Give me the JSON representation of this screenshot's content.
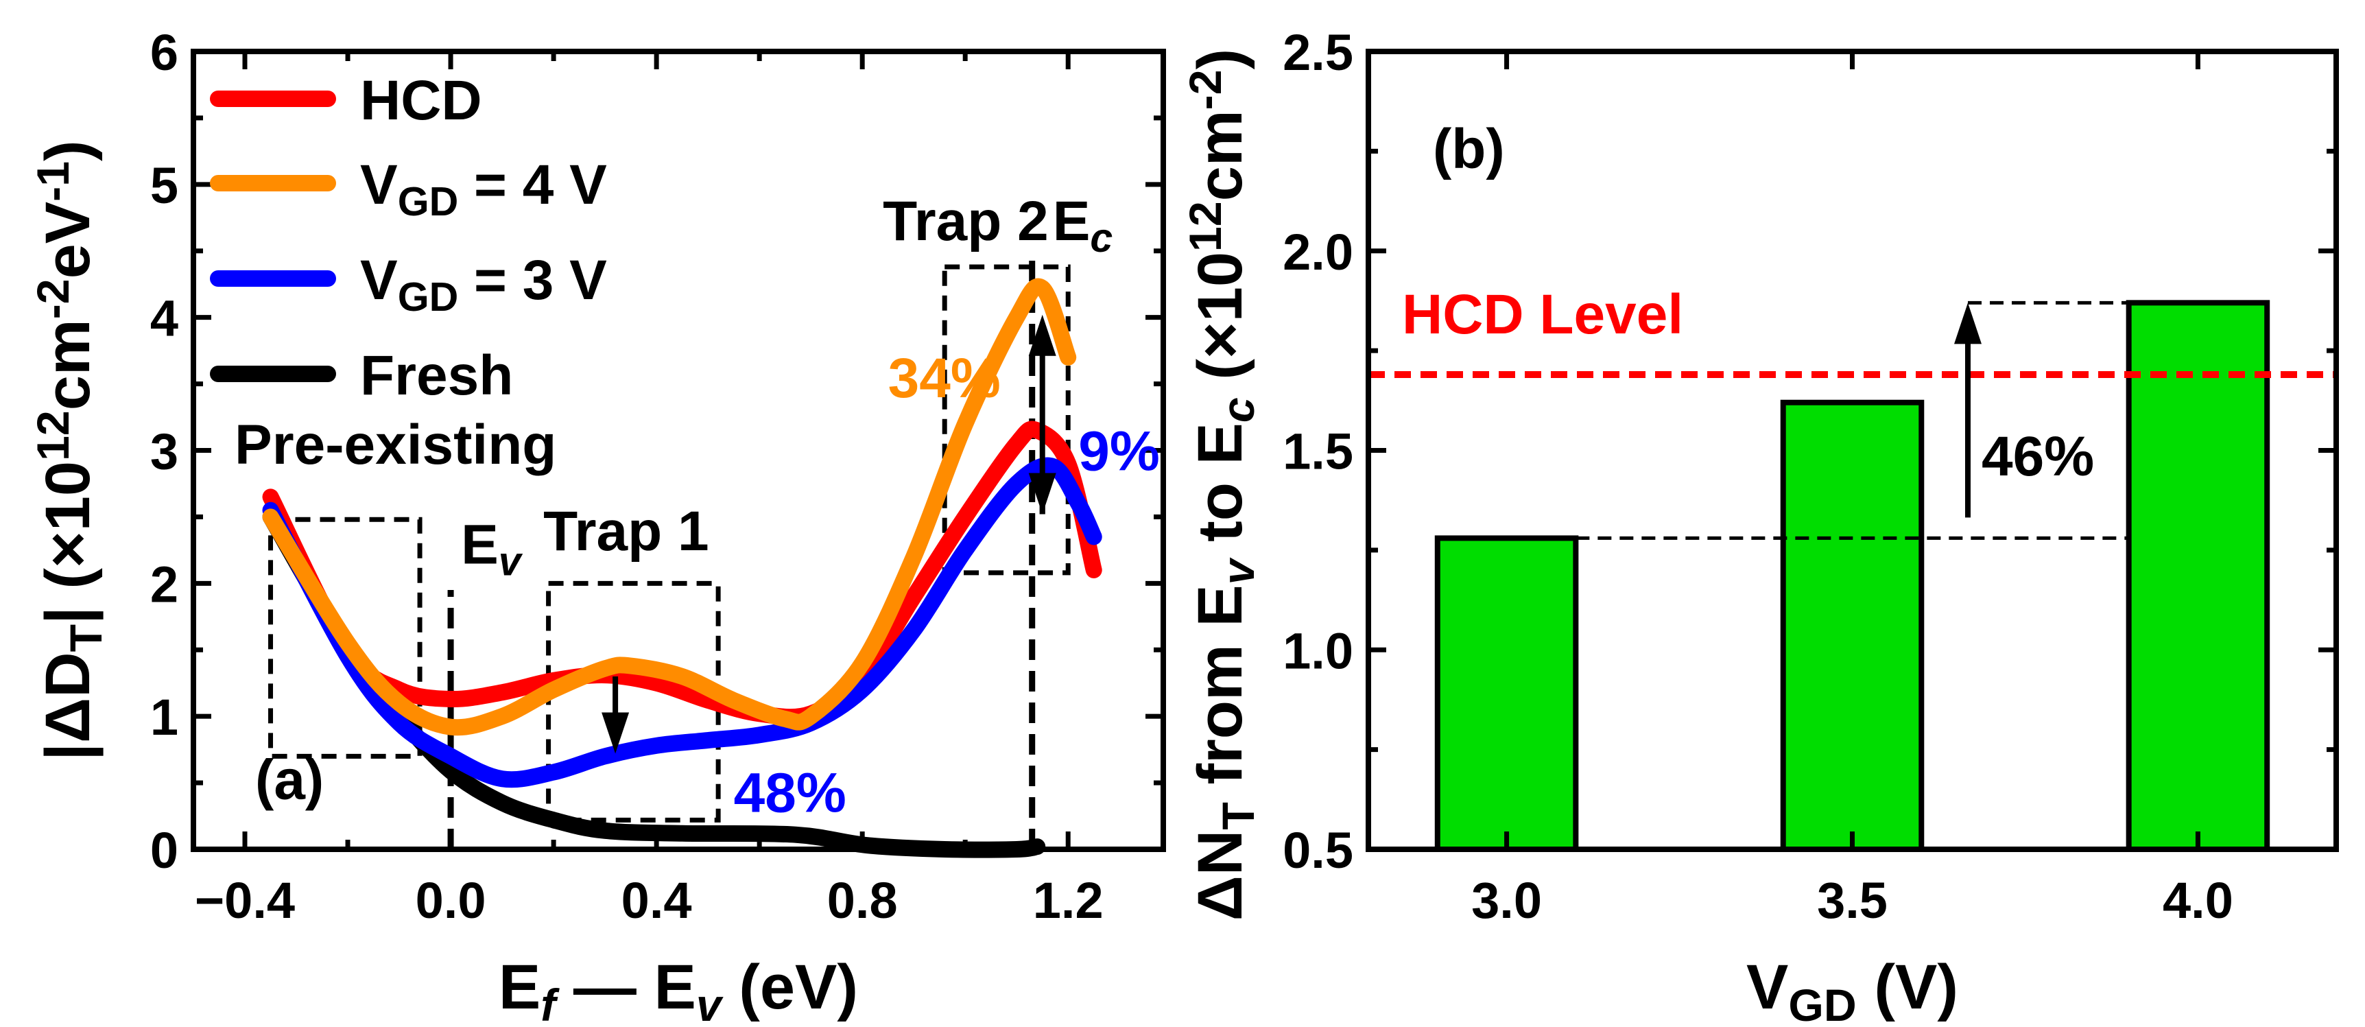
{
  "chart_data": [
    {
      "type": "line",
      "panel_label": "(a)",
      "xlabel_parts": [
        {
          "t": "E"
        },
        {
          "t": "f",
          "sub": true,
          "italic": true
        },
        {
          "t": " — E"
        },
        {
          "t": "v",
          "sub": true,
          "italic": true
        },
        {
          "t": " (eV)"
        }
      ],
      "ylabel_parts": [
        {
          "t": "|ΔD"
        },
        {
          "t": "T",
          "sub": true
        },
        {
          "t": "| (×10"
        },
        {
          "t": "12",
          "sup": true
        },
        {
          "t": "cm"
        },
        {
          "t": "-2",
          "sup": true
        },
        {
          "t": "eV"
        },
        {
          "t": "-1",
          "sup": true
        },
        {
          "t": ")"
        }
      ],
      "xlim": [
        -0.5,
        1.385
      ],
      "ylim": [
        0,
        6
      ],
      "xticks": [
        -0.4,
        0.0,
        0.4,
        0.8,
        1.2
      ],
      "xtick_labels": [
        "−0.4",
        "0.0",
        "0.4",
        "0.8",
        "1.2"
      ],
      "yticks": [
        0,
        1,
        2,
        3,
        4,
        5,
        6
      ],
      "ytick_labels": [
        "0",
        "1",
        "2",
        "3",
        "4",
        "5",
        "6"
      ],
      "legend_position": "top-left",
      "series": [
        {
          "name": "HCD",
          "name_parts": [
            {
              "t": "HCD"
            }
          ],
          "color": "#ff0000",
          "x": [
            -0.35,
            -0.2,
            -0.1,
            0.0,
            0.1,
            0.2,
            0.3,
            0.4,
            0.5,
            0.6,
            0.7,
            0.8,
            0.9,
            1.0,
            1.1,
            1.14,
            1.2,
            1.25
          ],
          "y": [
            2.65,
            1.5,
            1.2,
            1.13,
            1.18,
            1.27,
            1.31,
            1.25,
            1.12,
            1.02,
            1.02,
            1.3,
            1.9,
            2.5,
            3.05,
            3.15,
            2.9,
            2.1
          ]
        },
        {
          "name": "VGD = 4 V",
          "name_parts": [
            {
              "t": "V"
            },
            {
              "t": "GD",
              "sub": true
            },
            {
              "t": " = 4 V"
            }
          ],
          "color": "#ff8c00",
          "x": [
            -0.35,
            -0.2,
            -0.1,
            0.0,
            0.1,
            0.2,
            0.3,
            0.35,
            0.45,
            0.55,
            0.65,
            0.7,
            0.8,
            0.9,
            1.0,
            1.1,
            1.15,
            1.2
          ],
          "y": [
            2.5,
            1.55,
            1.1,
            0.92,
            1.0,
            1.2,
            1.36,
            1.38,
            1.3,
            1.12,
            0.98,
            1.0,
            1.4,
            2.2,
            3.2,
            4.0,
            4.22,
            3.7
          ]
        },
        {
          "name": "VGD = 3 V",
          "name_parts": [
            {
              "t": "V"
            },
            {
              "t": "GD",
              "sub": true
            },
            {
              "t": " = 3 V"
            }
          ],
          "color": "#0000ff",
          "x": [
            -0.35,
            -0.2,
            -0.1,
            0.0,
            0.1,
            0.2,
            0.3,
            0.4,
            0.5,
            0.6,
            0.7,
            0.8,
            0.9,
            1.0,
            1.1,
            1.17,
            1.22,
            1.25
          ],
          "y": [
            2.55,
            1.45,
            0.95,
            0.7,
            0.53,
            0.58,
            0.7,
            0.78,
            0.82,
            0.86,
            0.95,
            1.2,
            1.65,
            2.25,
            2.75,
            2.88,
            2.6,
            2.35
          ]
        },
        {
          "name": "Fresh",
          "name_parts": [
            {
              "t": "Fresh"
            }
          ],
          "color": "#000000",
          "x": [
            -0.35,
            -0.2,
            -0.1,
            0.0,
            0.1,
            0.2,
            0.3,
            0.45,
            0.67,
            0.81,
            0.96,
            1.1,
            1.14
          ],
          "y": [
            2.5,
            1.5,
            1.0,
            0.59,
            0.35,
            0.22,
            0.14,
            0.12,
            0.11,
            0.03,
            0.0,
            0.0,
            0.02
          ]
        }
      ],
      "boxes": [
        {
          "name": "pre-existing",
          "x": [
            -0.35,
            -0.06
          ],
          "y": [
            0.7,
            2.48
          ]
        },
        {
          "name": "trap-1",
          "x": [
            0.19,
            0.52
          ],
          "y": [
            0.22,
            2.0
          ]
        },
        {
          "name": "trap-2",
          "x": [
            0.96,
            1.2
          ],
          "y": [
            2.08,
            4.38
          ]
        }
      ],
      "vlines": [
        {
          "name": "ev",
          "x": 0.0,
          "y": [
            0,
            1.95
          ]
        },
        {
          "name": "ec",
          "x": 1.13,
          "y": [
            0,
            4.5
          ]
        }
      ],
      "arrows": [
        {
          "name": "trap1-decrease",
          "x": 0.32,
          "from": 1.3,
          "to": 0.72,
          "double": false
        },
        {
          "name": "trap2-change",
          "x": 1.15,
          "from": 2.52,
          "to": 4.02,
          "double": true
        }
      ],
      "annotations": [
        {
          "name": "pre-existing-label",
          "parts": [
            {
              "t": "Pre-existing"
            }
          ],
          "color": "#000000",
          "x": -0.42,
          "y": 2.9
        },
        {
          "name": "ev-label",
          "parts": [
            {
              "t": "E"
            },
            {
              "t": "v",
              "sub": true,
              "italic": true
            }
          ],
          "color": "#000000",
          "x": 0.02,
          "y": 2.15
        },
        {
          "name": "trap1-label",
          "parts": [
            {
              "t": "Trap 1"
            }
          ],
          "color": "#000000",
          "x": 0.18,
          "y": 2.25
        },
        {
          "name": "trap2-label",
          "parts": [
            {
              "t": "Trap 2"
            }
          ],
          "color": "#000000",
          "x": 0.84,
          "y": 4.58
        },
        {
          "name": "ec-label",
          "parts": [
            {
              "t": "E"
            },
            {
              "t": "c",
              "sub": true,
              "italic": true
            }
          ],
          "color": "#000000",
          "x": 1.17,
          "y": 4.58
        },
        {
          "name": "pct-34",
          "parts": [
            {
              "t": "34%"
            }
          ],
          "color": "#ff8c00",
          "x": 0.85,
          "y": 3.4
        },
        {
          "name": "pct-9",
          "parts": [
            {
              "t": "9%"
            }
          ],
          "color": "#0000ff",
          "x": 1.22,
          "y": 2.85
        },
        {
          "name": "pct-48",
          "parts": [
            {
              "t": "48%"
            }
          ],
          "color": "#0000ff",
          "x": 0.55,
          "y": 0.28
        },
        {
          "name": "panel-a",
          "parts": [
            {
              "t": "(a)"
            }
          ],
          "color": "#000000",
          "x": -0.38,
          "y": 0.38
        }
      ]
    },
    {
      "type": "bar",
      "panel_label": "(b)",
      "xlabel_parts": [
        {
          "t": "V"
        },
        {
          "t": "GD",
          "sub": true
        },
        {
          "t": " (V)"
        }
      ],
      "ylabel_parts": [
        {
          "t": "ΔN"
        },
        {
          "t": "T",
          "sub": true
        },
        {
          "t": " from E"
        },
        {
          "t": "v",
          "sub": true,
          "italic": true
        },
        {
          "t": " to E"
        },
        {
          "t": "c",
          "sub": true,
          "italic": true
        },
        {
          "t": " (×10"
        },
        {
          "t": "12",
          "sup": true
        },
        {
          "t": "cm"
        },
        {
          "t": "-2",
          "sup": true
        },
        {
          "t": ")"
        }
      ],
      "categories": [
        "3.0",
        "3.5",
        "4.0"
      ],
      "x": [
        3.0,
        3.5,
        4.0
      ],
      "values": [
        1.28,
        1.62,
        1.87
      ],
      "bar_width": 0.2,
      "bar_color": "#00dd00",
      "xlim": [
        2.8,
        4.2
      ],
      "ylim": [
        0.5,
        2.5
      ],
      "yticks": [
        0.5,
        1.0,
        1.5,
        2.0,
        2.5
      ],
      "ytick_labels": [
        "0.5",
        "1.0",
        "1.5",
        "2.0",
        "2.5"
      ],
      "reference_line": {
        "label": "HCD Level",
        "value": 1.69,
        "color": "#ff0000"
      },
      "increase_annotation": {
        "label": "46%",
        "from": 1.28,
        "to": 1.87
      }
    }
  ]
}
